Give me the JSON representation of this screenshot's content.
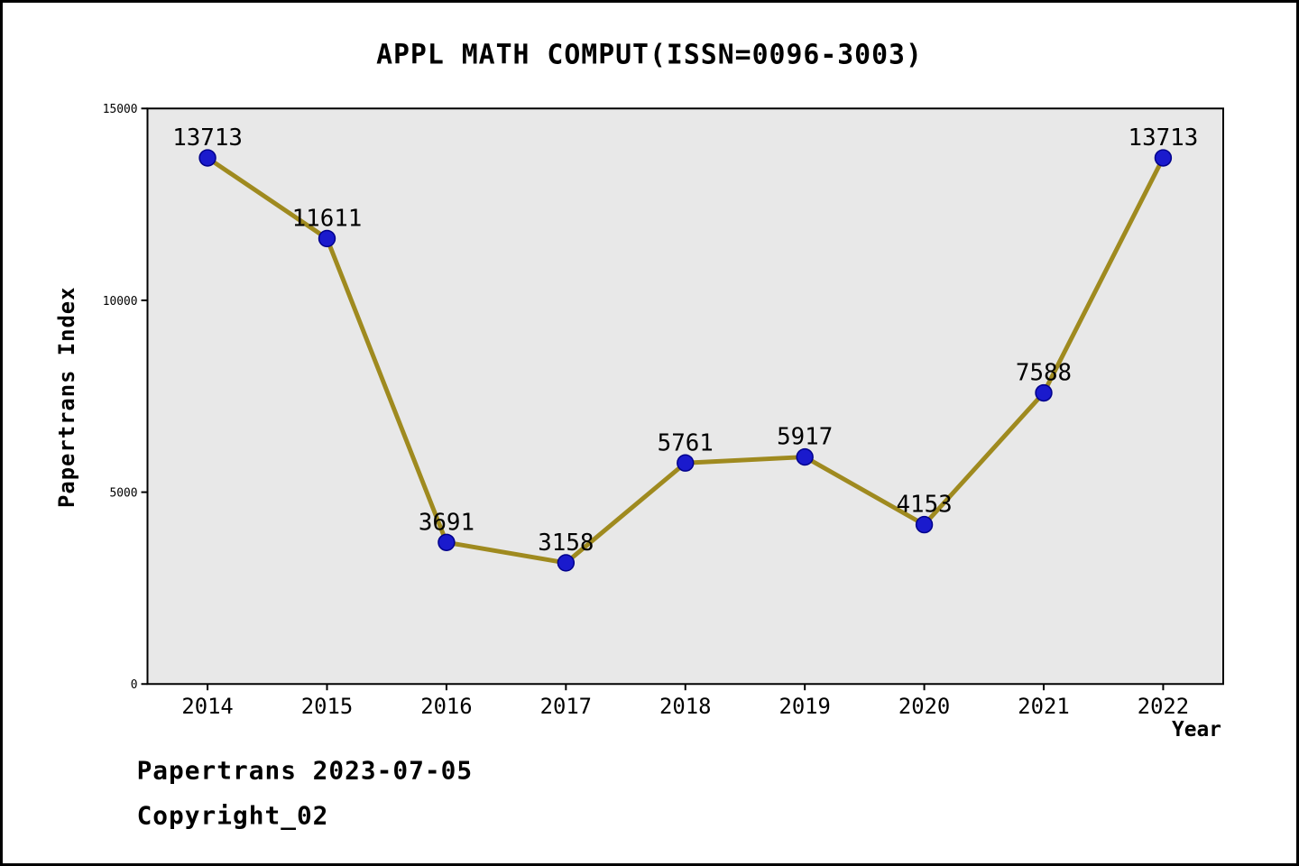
{
  "chart_data": {
    "type": "line",
    "title": "APPL MATH COMPUT(ISSN=0096-3003)",
    "xlabel": "Year",
    "ylabel": "Papertrans Index",
    "x": [
      2014,
      2015,
      2016,
      2017,
      2018,
      2019,
      2020,
      2021,
      2022
    ],
    "values": [
      13713,
      11611,
      3691,
      3158,
      5761,
      5917,
      4153,
      7588,
      13713
    ],
    "ylim": [
      0,
      15000
    ],
    "yticks": [
      0,
      5000,
      10000,
      15000
    ],
    "grid": false,
    "legend": "none",
    "line_color": "#9f8a1f",
    "marker_color": "#1a1acd",
    "marker_edge_color": "#00008b",
    "plot_bg": "#e8e8e8"
  },
  "footer": {
    "line1": "Papertrans 2023-07-05",
    "line2": "Copyright_02"
  }
}
